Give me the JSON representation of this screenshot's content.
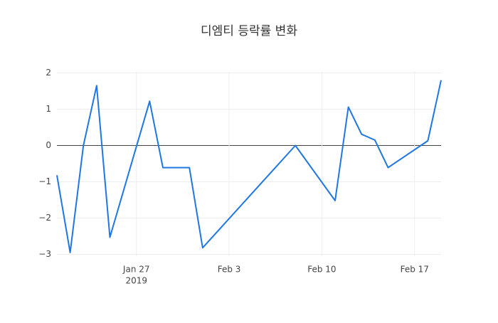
{
  "chart_data": {
    "type": "line",
    "title": "디엠티 등락률 변화",
    "x": [
      "2019-01-21",
      "2019-01-22",
      "2019-01-23",
      "2019-01-24",
      "2019-01-25",
      "2019-01-28",
      "2019-01-29",
      "2019-01-31",
      "2019-02-01",
      "2019-02-08",
      "2019-02-11",
      "2019-02-12",
      "2019-02-13",
      "2019-02-14",
      "2019-02-15",
      "2019-02-18",
      "2019-02-19"
    ],
    "series": [
      {
        "color": "#1f77e4",
        "values": [
          -0.82,
          -2.95,
          0,
          1.65,
          -2.53,
          1.22,
          -0.61,
          -0.61,
          -2.82,
          0,
          -1.52,
          1.06,
          0.31,
          0.15,
          -0.61,
          0.13,
          1.8
        ]
      }
    ],
    "xlim": [
      "2019-01-21",
      "2019-02-19"
    ],
    "xticks": [
      {
        "value": "2019-01-27",
        "label": "Jan 27",
        "sublabel": "2019"
      },
      {
        "value": "2019-02-03",
        "label": "Feb 3"
      },
      {
        "value": "2019-02-10",
        "label": "Feb 10"
      },
      {
        "value": "2019-02-17",
        "label": "Feb 17"
      }
    ],
    "ylim": [
      -3.05,
      2.05
    ],
    "yticks": [
      {
        "value": -3,
        "label": "−3"
      },
      {
        "value": -2,
        "label": "−2"
      },
      {
        "value": -1,
        "label": "−1"
      },
      0,
      1,
      2
    ],
    "grid": true,
    "zeroline": true
  }
}
